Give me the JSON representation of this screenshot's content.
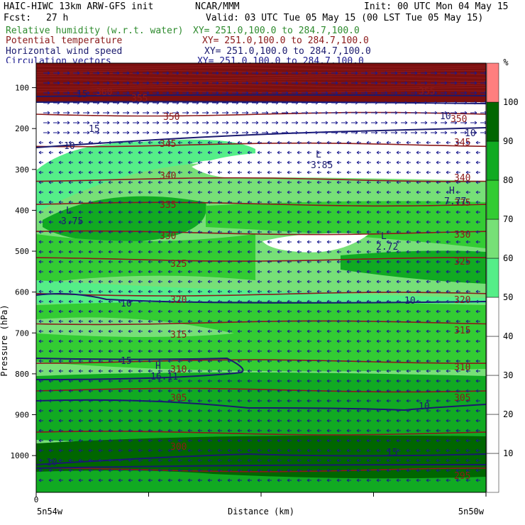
{
  "header": {
    "model": "HAIC-HIWC 13km ARW-GFS init",
    "org": "NCAR/MMM",
    "init": "Init: 00 UTC Mon 04 May 15",
    "fcst_label": "Fcst:",
    "fcst_value": "27 h",
    "valid": "Valid: 03 UTC Tue 05 May 15 (00 LST Tue 05 May 15)"
  },
  "fields": [
    {
      "label": "Relative humidity (w.r.t. water)",
      "xy": "XY= 251.0,100.0 to 284.7,100.0",
      "color": "#2e8b2e"
    },
    {
      "label": "Potential temperature",
      "xy": "XY= 251.0,100.0 to 284.7,100.0",
      "color": "#8b1a1a"
    },
    {
      "label": "Horizontal wind speed",
      "xy": "XY= 251.0,100.0 to 284.7,100.0",
      "color": "#1a1a6e"
    },
    {
      "label": "Circulation vectors",
      "xy": "XY= 251.0,100.0 to 284.7,100.0",
      "color": "#1a1a8e"
    }
  ],
  "chart_data": {
    "type": "heatmap",
    "xlabel": "Distance (km)",
    "ylabel": "Pressure (hPa)",
    "x_tick_start": "0",
    "x_left_label": "5n54w",
    "x_right_label": "5n50w",
    "y_ticks": [
      100,
      200,
      300,
      400,
      500,
      600,
      700,
      800,
      900,
      1000
    ],
    "ylim": [
      1090,
      40
    ],
    "colorbar": {
      "unit": "%",
      "levels": [
        10,
        20,
        30,
        40,
        50,
        60,
        70,
        80,
        90,
        100
      ],
      "colors": [
        "#ffffff",
        "#ffffff",
        "#ffffff",
        "#ffffff",
        "#ffffff",
        "#55ee88",
        "#77e077",
        "#33cc33",
        "#11aa22",
        "#006600",
        "#ff7f7f"
      ]
    },
    "theta_contours": [
      {
        "level": 350,
        "p": 165
      },
      {
        "level": 345,
        "p": 240
      },
      {
        "level": 340,
        "p": 325
      },
      {
        "level": 335,
        "p": 385
      },
      {
        "level": 330,
        "p": 455
      },
      {
        "level": 325,
        "p": 520
      },
      {
        "level": 320,
        "p": 605
      },
      {
        "level": 315,
        "p": 675
      },
      {
        "level": 310,
        "p": 770
      },
      {
        "level": 305,
        "p": 840
      },
      {
        "level": 300,
        "p": 945
      },
      {
        "level": 295,
        "p": 1035
      }
    ],
    "theta_labels": [
      "360",
      "355",
      "350",
      "345",
      "340",
      "335",
      "330",
      "325",
      "320",
      "315",
      "310",
      "305",
      "300",
      "295"
    ],
    "wind_labels": [
      "15",
      "15",
      "10",
      "10",
      "15",
      "10",
      "10",
      "15",
      "10",
      "10",
      "10"
    ],
    "extrema": [
      {
        "symbol": "L",
        "value": "3.85"
      },
      {
        "symbol": "L",
        "value": "3.75"
      },
      {
        "symbol": "L",
        "value": "2.72"
      },
      {
        "symbol": "H",
        "value": "7.77"
      },
      {
        "symbol": "H",
        "value": "16.11"
      }
    ]
  }
}
